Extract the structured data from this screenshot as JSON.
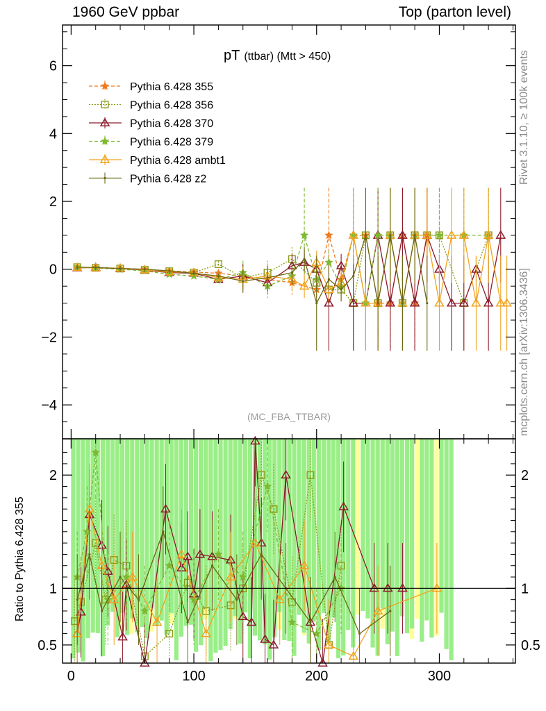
{
  "header": {
    "left": "1960 GeV ppbar",
    "right": "Top (parton level)"
  },
  "side_text": {
    "rivet": "Rivet 3.1.10, ≥ 100k events",
    "mcplots": "mcplots.cern.ch [arXiv:1306.3436]"
  },
  "main_plot": {
    "title_main": "pT",
    "title_small": "(ttbar) (Mtt > 450)",
    "watermark": "(MC_FBA_TTBAR)",
    "ylim": [
      -5.0,
      7.2
    ],
    "yticks": [
      "−4",
      "−2",
      "0",
      "2",
      "4",
      "6"
    ]
  },
  "ratio_plot": {
    "ylabel": "Ratio to Pythia 6.428 355",
    "ylim": [
      0.34,
      2.32
    ],
    "yticks": [
      "0.5",
      "1",
      "2"
    ],
    "xticks": [
      "0",
      "100",
      "200",
      "300"
    ]
  },
  "legend": [
    {
      "label": "Pythia 6.428 355",
      "color": "#ee7a1e",
      "marker": "star",
      "dash": "5,3"
    },
    {
      "label": "Pythia 6.428 356",
      "color": "#8c9a16",
      "marker": "square",
      "dash": "2,2"
    },
    {
      "label": "Pythia 6.428 370",
      "color": "#8b1a2a",
      "marker": "triangle",
      "dash": ""
    },
    {
      "label": "Pythia 6.428 379",
      "color": "#7fb832",
      "marker": "star",
      "dash": "5,3"
    },
    {
      "label": "Pythia 6.428 ambt1",
      "color": "#f0a21e",
      "marker": "triangle",
      "dash": ""
    },
    {
      "label": "Pythia 6.428 z2",
      "color": "#6b6814",
      "marker": "dot",
      "dash": ""
    }
  ],
  "chart_data": [
    {
      "type": "line",
      "x_range": [
        -7,
        362
      ],
      "y_range": [
        -5.0,
        7.2
      ],
      "series": [
        {
          "name": "Pythia 6.428 355",
          "x": [
            5,
            20,
            40,
            60,
            80,
            100,
            120,
            140,
            160,
            180,
            200,
            210,
            220,
            230,
            240,
            250,
            260,
            270,
            280,
            290
          ],
          "y": [
            0.05,
            0.05,
            0.03,
            0.0,
            -0.05,
            -0.08,
            -0.12,
            -0.2,
            -0.3,
            -0.4,
            -0.6,
            1.0,
            -0.3,
            1.0,
            1.0,
            -1.0,
            -1.0,
            1.0,
            -1.0,
            1.0
          ]
        },
        {
          "name": "Pythia 6.428 356",
          "x": [
            5,
            20,
            40,
            60,
            80,
            100,
            120,
            140,
            160,
            180,
            200,
            210,
            220,
            230,
            240,
            250,
            260,
            270,
            280,
            290,
            300,
            320,
            340
          ],
          "y": [
            0.06,
            0.04,
            0.02,
            -0.02,
            -0.06,
            -0.1,
            0.15,
            -0.25,
            -0.1,
            0.3,
            -0.4,
            -0.6,
            -0.6,
            -1.0,
            1.0,
            -1.0,
            1.0,
            -1.0,
            1.0,
            1.0,
            1.0,
            -1.0,
            1.0
          ]
        },
        {
          "name": "Pythia 6.428 370",
          "x": [
            5,
            20,
            40,
            60,
            80,
            100,
            120,
            140,
            160,
            180,
            190,
            200,
            210,
            220,
            230,
            240,
            250,
            260,
            270,
            280,
            290,
            300,
            310,
            320,
            330,
            340,
            350
          ],
          "y": [
            0.04,
            0.05,
            0.02,
            -0.03,
            -0.1,
            -0.12,
            -0.3,
            -0.2,
            -0.4,
            0.1,
            0.2,
            0.0,
            -1.0,
            0.1,
            -1.0,
            -1.0,
            1.0,
            -1.0,
            1.0,
            -1.0,
            1.0,
            0.0,
            -1.0,
            -1.0,
            0.0,
            -1.0,
            1.0
          ]
        },
        {
          "name": "Pythia 6.428 379",
          "x": [
            5,
            20,
            40,
            60,
            80,
            100,
            120,
            140,
            160,
            180,
            190,
            200,
            210,
            220,
            230,
            240,
            250,
            260,
            270,
            280,
            300,
            320,
            340
          ],
          "y": [
            0.07,
            0.03,
            0.0,
            -0.05,
            -0.15,
            -0.2,
            -0.3,
            -0.1,
            -0.5,
            -0.2,
            1.0,
            -0.3,
            0.2,
            -0.5,
            1.0,
            -1.0,
            1.0,
            1.0,
            -1.0,
            1.0,
            1.0,
            1.0,
            1.0
          ]
        },
        {
          "name": "Pythia 6.428 ambt1",
          "x": [
            5,
            20,
            40,
            60,
            80,
            100,
            120,
            140,
            160,
            180,
            190,
            200,
            210,
            220,
            230,
            240,
            250,
            260,
            270,
            280,
            290,
            300,
            310,
            320,
            330,
            340,
            350,
            355
          ],
          "y": [
            0.05,
            0.04,
            0.03,
            -0.02,
            -0.08,
            -0.1,
            -0.25,
            -0.3,
            -0.2,
            -0.3,
            -0.5,
            0.2,
            -0.6,
            -0.4,
            1.0,
            -1.0,
            -1.0,
            1.0,
            -1.0,
            1.0,
            1.0,
            -1.0,
            1.0,
            1.0,
            -1.0,
            1.0,
            -1.0,
            -1.0
          ]
        },
        {
          "name": "Pythia 6.428 z2",
          "x": [
            5,
            20,
            40,
            60,
            80,
            100,
            120,
            140,
            160,
            180,
            190,
            200,
            210,
            220,
            230,
            240,
            250,
            260,
            270,
            280,
            290
          ],
          "y": [
            0.06,
            0.05,
            0.02,
            0.0,
            -0.05,
            -0.12,
            -0.2,
            -0.35,
            -0.25,
            -0.1,
            0.3,
            -1.0,
            -0.3,
            -0.6,
            -0.2,
            1.0,
            -1.0,
            1.0,
            -1.0,
            1.0,
            -1.0
          ]
        }
      ]
    },
    {
      "type": "line",
      "x_range": [
        -7,
        362
      ],
      "y_range": [
        0.34,
        2.32
      ],
      "reference_line": 1.0,
      "series": [
        {
          "name": "Pythia 6.428 356",
          "x": [
            3,
            8,
            20,
            28,
            35,
            45,
            60,
            80,
            95,
            110,
            130,
            140,
            155,
            165,
            180,
            195,
            210,
            220
          ],
          "y": [
            0.71,
            0.88,
            1.4,
            0.9,
            1.25,
            1.2,
            0.4,
            0.6,
            1.05,
            0.8,
            0.85,
            1.0,
            2.0,
            1.7,
            0.88,
            2.0,
            0.5,
            1.2
          ]
        },
        {
          "name": "Pythia 6.428 370",
          "x": [
            5,
            8,
            15,
            25,
            30,
            42,
            45,
            60,
            77,
            90,
            95,
            100,
            105,
            115,
            130,
            140,
            147,
            150,
            155,
            158,
            165,
            175,
            195,
            205,
            222,
            247,
            258,
            270
          ],
          "y": [
            0.6,
            0.79,
            1.65,
            1.38,
            1.15,
            0.57,
            1.03,
            0.3,
            1.7,
            1.18,
            1.28,
            0.95,
            1.3,
            1.28,
            1.25,
            0.75,
            0.7,
            2.3,
            1.4,
            0.55,
            0.5,
            2.0,
            0.7,
            0.33,
            1.72,
            1.0,
            1.0,
            1.0
          ]
        },
        {
          "name": "Pythia 6.428 379",
          "x": [
            5,
            13,
            20,
            30,
            45,
            60,
            80,
            100,
            120,
            140,
            160,
            180,
            200,
            220
          ],
          "y": [
            1.1,
            1.5,
            2.2,
            0.9,
            1.1,
            0.8,
            1.2,
            0.9,
            1.3,
            1.1,
            1.9,
            0.7,
            0.6,
            1.0
          ]
        },
        {
          "name": "Pythia 6.428 ambt1",
          "x": [
            5,
            15,
            25,
            35,
            50,
            70,
            90,
            110,
            130,
            150,
            170,
            190,
            210,
            230,
            250,
            298
          ],
          "y": [
            0.6,
            1.7,
            1.2,
            0.9,
            1.1,
            0.7,
            1.3,
            0.6,
            1.1,
            1.4,
            0.9,
            1.2,
            0.5,
            0.4,
            0.8,
            1.0
          ]
        },
        {
          "name": "Pythia 6.428 z2",
          "x": [
            5,
            15,
            25,
            40,
            55,
            75,
            95,
            115,
            135,
            155,
            175,
            195,
            215,
            235,
            260
          ],
          "y": [
            0.9,
            1.3,
            0.8,
            1.1,
            0.9,
            1.5,
            0.7,
            1.2,
            0.9,
            1.3,
            1.0,
            0.7,
            1.1,
            0.6,
            0.8
          ]
        }
      ],
      "bands": [
        {
          "color": "#ffff99",
          "x": [
            0,
            300
          ],
          "y_low": 0.55,
          "y_high": 2.32
        },
        {
          "color": "#99ee88",
          "x": [
            0,
            310
          ],
          "y_low": 0.34,
          "y_high": 2.32
        }
      ]
    }
  ]
}
